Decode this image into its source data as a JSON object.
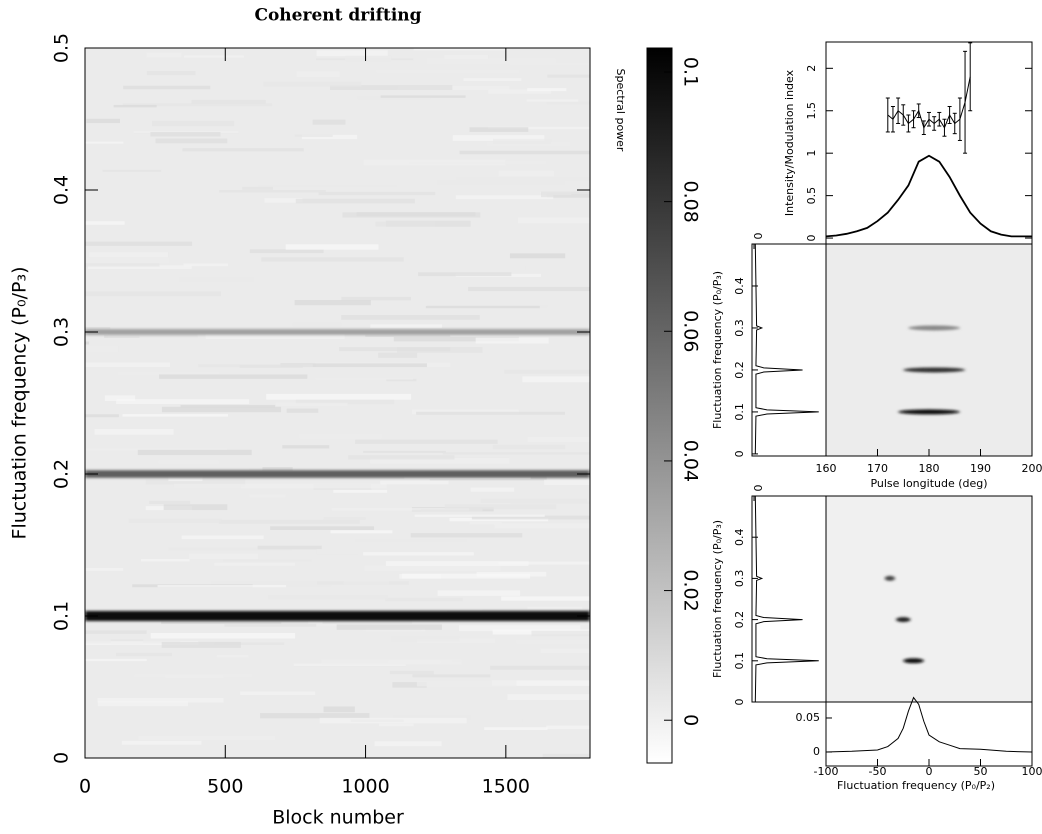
{
  "chart_data": [
    {
      "type": "heatmap",
      "title": "Coherent drifting",
      "xlabel": "Block number",
      "ylabel": "Fluctuation frequency (P₀/P₃)",
      "xlim": [
        0,
        1800
      ],
      "xticks": [
        0,
        500,
        1000,
        1500
      ],
      "ylim": [
        0,
        0.5
      ],
      "yticks": [
        0,
        0.1,
        0.2,
        0.3,
        0.4,
        0.5
      ],
      "bands": [
        {
          "y": 0.1,
          "value": 0.1
        },
        {
          "y": 0.2,
          "value": 0.06
        },
        {
          "y": 0.3,
          "value": 0.03
        }
      ]
    },
    {
      "type": "colorbar",
      "label": "Spectral power",
      "ylim": [
        -0.0066,
        0.1037
      ],
      "yticks": [
        0,
        0.02,
        0.04,
        0.06,
        0.08,
        0.1
      ]
    },
    {
      "type": "line",
      "ylabel": "Intensity/Modulation index",
      "xlim": [
        160,
        200
      ],
      "ylim": [
        -0.07,
        2.31
      ],
      "yticks": [
        0,
        0.5,
        1,
        1.5,
        2
      ],
      "series": [
        {
          "color": "#000000",
          "x": [
            160,
            162,
            164,
            166,
            168,
            170,
            172,
            174,
            176,
            178,
            180,
            182,
            184,
            186,
            188,
            190,
            192,
            194,
            196,
            198,
            200
          ],
          "values": [
            0.02,
            0.03,
            0.05,
            0.08,
            0.12,
            0.2,
            0.3,
            0.45,
            0.62,
            0.9,
            0.97,
            0.9,
            0.72,
            0.5,
            0.3,
            0.17,
            0.08,
            0.04,
            0.02,
            0.02,
            0.02
          ]
        },
        {
          "color": "#000000",
          "x": [
            172,
            173,
            174,
            175,
            176,
            177,
            178,
            179,
            180,
            181,
            182,
            183,
            184,
            185,
            186,
            187,
            188
          ],
          "values": [
            1.45,
            1.4,
            1.5,
            1.45,
            1.35,
            1.4,
            1.5,
            1.3,
            1.4,
            1.35,
            1.4,
            1.3,
            1.45,
            1.35,
            1.4,
            1.6,
            1.9
          ],
          "errors": [
            0.2,
            0.15,
            0.15,
            0.12,
            0.1,
            0.1,
            0.08,
            0.08,
            0.08,
            0.08,
            0.08,
            0.1,
            0.1,
            0.12,
            0.25,
            0.6,
            0.4
          ]
        }
      ]
    },
    {
      "type": "lrfs",
      "xlabel": "Pulse longitude (deg)",
      "ylabel": "Fluctuation frequency (P₀/P₃)",
      "xlim": [
        160,
        200
      ],
      "xticks": [
        160,
        170,
        180,
        190,
        200
      ],
      "ylim": [
        -0.005,
        0.5
      ],
      "yticks": [
        0,
        0.1,
        0.2,
        0.3,
        0.4
      ],
      "spectrum_lim": [
        0,
        1.05
      ],
      "spectrum_ticks": [
        0
      ],
      "spectrum": {
        "y": [
          0,
          0.09,
          0.095,
          0.1,
          0.105,
          0.11,
          0.19,
          0.195,
          0.2,
          0.205,
          0.21,
          0.295,
          0.3,
          0.305,
          0.5
        ],
        "values": [
          0.02,
          0.03,
          0.2,
          1,
          0.2,
          0.03,
          0.03,
          0.15,
          0.75,
          0.15,
          0.03,
          0.04,
          0.12,
          0.04,
          0.02
        ]
      },
      "features": [
        {
          "x": 180,
          "y": 0.1,
          "width": 12,
          "color": "#111111"
        },
        {
          "x": 181,
          "y": 0.2,
          "width": 12,
          "color": "#333333"
        },
        {
          "x": 181,
          "y": 0.3,
          "width": 10,
          "color": "#888888"
        }
      ]
    },
    {
      "type": "2dfs",
      "ylabel": "Fluctuation frequency (P₀/P₃)",
      "ylim": [
        0,
        0.5
      ],
      "yticks": [
        0,
        0.1,
        0.2,
        0.3,
        0.4
      ],
      "spectrum_lim": [
        0,
        1.05
      ],
      "spectrum_ticks": [
        0
      ],
      "spectrum": {
        "y": [
          0,
          0.09,
          0.095,
          0.1,
          0.105,
          0.11,
          0.19,
          0.195,
          0.2,
          0.205,
          0.21,
          0.295,
          0.3,
          0.305,
          0.5
        ],
        "values": [
          0.02,
          0.03,
          0.2,
          1,
          0.2,
          0.03,
          0.03,
          0.15,
          0.75,
          0.15,
          0.03,
          0.04,
          0.12,
          0.04,
          0.02
        ]
      },
      "features": [
        {
          "x": -15,
          "y": 0.1,
          "width": 20,
          "color": "#111111"
        },
        {
          "x": -25,
          "y": 0.2,
          "width": 14,
          "color": "#222222"
        },
        {
          "x": -38,
          "y": 0.3,
          "width": 10,
          "color": "#444444"
        }
      ],
      "profile": {
        "xlabel": "Fluctuation frequency (P₀/P₂)",
        "xlim": [
          -100,
          100
        ],
        "xticks": [
          -100,
          -50,
          0,
          50,
          100
        ],
        "ylim": [
          -0.0206,
          0.0735
        ],
        "yticks": [
          0,
          0.05
        ],
        "x": [
          -100,
          -75,
          -50,
          -40,
          -30,
          -25,
          -20,
          -15,
          -10,
          -5,
          0,
          10,
          20,
          30,
          50,
          75,
          100
        ],
        "values": [
          0,
          0.001,
          0.003,
          0.008,
          0.02,
          0.035,
          0.06,
          0.08,
          0.07,
          0.045,
          0.025,
          0.015,
          0.01,
          0.005,
          0.004,
          0.001,
          0
        ]
      }
    }
  ]
}
